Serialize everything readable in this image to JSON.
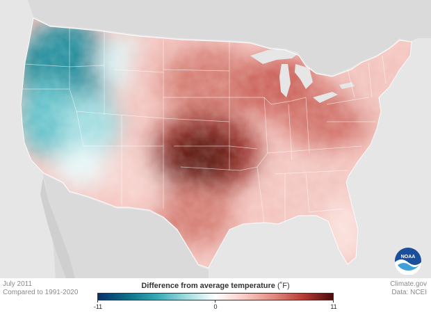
{
  "map": {
    "period": "July 2011",
    "baseline": "Compared to 1991-2020",
    "source": "Climate.gov",
    "data_source": "Data: NCEI",
    "logo_text": "NOAA"
  },
  "legend": {
    "title": "Difference from average temperature",
    "unit": "(˚F)",
    "min_label": "-11",
    "mid_label": "0",
    "max_label": "11",
    "min": -11,
    "max": 11,
    "colors": [
      "#08306b",
      "#0d6e87",
      "#36a8b3",
      "#9fdce0",
      "#ffffff",
      "#f9c9c4",
      "#e08a80",
      "#b53a33",
      "#4a0b0b"
    ]
  },
  "regions": [
    {
      "name": "pacific-northwest",
      "anomaly": -8
    },
    {
      "name": "california-coast",
      "anomaly": -4
    },
    {
      "name": "great-basin",
      "anomaly": -2
    },
    {
      "name": "southwest",
      "anomaly": 0
    },
    {
      "name": "northern-rockies",
      "anomaly": 1
    },
    {
      "name": "northern-plains",
      "anomaly": 4
    },
    {
      "name": "upper-midwest",
      "anomaly": 6
    },
    {
      "name": "southern-plains",
      "anomaly": 10
    },
    {
      "name": "texas",
      "anomaly": 6
    },
    {
      "name": "ohio-valley",
      "anomaly": 5
    },
    {
      "name": "northeast",
      "anomaly": 4
    },
    {
      "name": "southeast",
      "anomaly": 2
    }
  ]
}
